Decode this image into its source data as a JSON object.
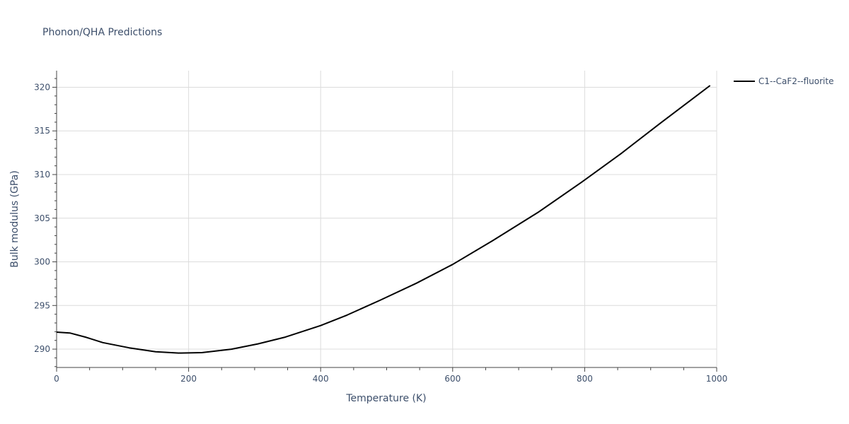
{
  "chart_data": {
    "type": "line",
    "title": "Phonon/QHA Predictions",
    "xlabel": "Temperature (K)",
    "ylabel": "Bulk modulus (GPa)",
    "xlim": [
      0,
      1000
    ],
    "ylim": [
      287.9,
      321.9
    ],
    "x_ticks": [
      0,
      200,
      400,
      600,
      800,
      1000
    ],
    "y_ticks": [
      290,
      295,
      300,
      305,
      310,
      315,
      320
    ],
    "x_tick_labels": [
      "0",
      "200",
      "400",
      "600",
      "800",
      "1000"
    ],
    "y_tick_labels": [
      "290",
      "295",
      "300",
      "305",
      "310",
      "315",
      "320"
    ],
    "grid": true,
    "legend_position": "top-right",
    "series": [
      {
        "name": "C1--CaF2--fluorite",
        "color": "#000000",
        "x": [
          0,
          20,
          45,
          70,
          110,
          150,
          185,
          220,
          265,
          305,
          345,
          400,
          440,
          490,
          545,
          600,
          660,
          730,
          795,
          855,
          915,
          990
        ],
        "y": [
          291.95,
          291.85,
          291.35,
          290.75,
          290.15,
          289.7,
          289.55,
          289.6,
          290.0,
          290.6,
          291.35,
          292.7,
          293.9,
          295.6,
          297.55,
          299.7,
          302.4,
          305.7,
          309.1,
          312.4,
          315.9,
          320.2
        ]
      }
    ]
  }
}
